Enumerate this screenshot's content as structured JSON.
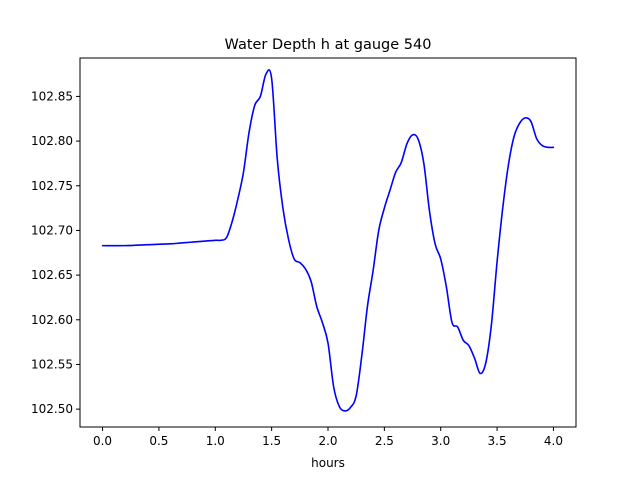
{
  "chart_data": {
    "type": "line",
    "title": "Water Depth h at gauge 540",
    "xlabel": "hours",
    "ylabel": "",
    "xlim": [
      -0.2,
      4.2
    ],
    "ylim": [
      102.48,
      102.893
    ],
    "xticks": [
      0.0,
      0.5,
      1.0,
      1.5,
      2.0,
      2.5,
      3.0,
      3.5,
      4.0
    ],
    "xtick_labels": [
      "0.0",
      "0.5",
      "1.0",
      "1.5",
      "2.0",
      "2.5",
      "3.0",
      "3.5",
      "4.0"
    ],
    "yticks": [
      102.5,
      102.55,
      102.6,
      102.65,
      102.7,
      102.75,
      102.8,
      102.85
    ],
    "ytick_labels": [
      "102.50",
      "102.55",
      "102.60",
      "102.65",
      "102.70",
      "102.75",
      "102.80",
      "102.85"
    ],
    "grid": false,
    "line_color": "#0000ff",
    "series": [
      {
        "x": [
          0.0,
          0.2,
          0.4,
          0.6,
          0.7,
          0.8,
          0.9,
          1.0,
          1.05,
          1.1,
          1.15,
          1.2,
          1.25,
          1.3,
          1.35,
          1.4,
          1.45,
          1.5,
          1.55,
          1.6,
          1.65,
          1.7,
          1.75,
          1.8,
          1.85,
          1.9,
          1.95,
          2.0,
          2.05,
          2.1,
          2.15,
          2.2,
          2.25,
          2.3,
          2.35,
          2.4,
          2.45,
          2.5,
          2.55,
          2.6,
          2.65,
          2.7,
          2.75,
          2.8,
          2.85,
          2.9,
          2.95,
          3.0,
          3.05,
          3.1,
          3.15,
          3.2,
          3.25,
          3.3,
          3.35,
          3.4,
          3.45,
          3.5,
          3.55,
          3.6,
          3.65,
          3.7,
          3.75,
          3.8,
          3.85,
          3.9,
          3.95,
          4.0
        ],
        "y": [
          102.683,
          102.683,
          102.684,
          102.685,
          102.686,
          102.687,
          102.688,
          102.689,
          102.689,
          102.692,
          102.71,
          102.735,
          102.765,
          102.81,
          102.84,
          102.85,
          102.875,
          102.87,
          102.78,
          102.725,
          102.69,
          102.668,
          102.664,
          102.657,
          102.643,
          102.615,
          102.597,
          102.574,
          102.525,
          102.503,
          102.498,
          102.502,
          102.515,
          102.56,
          102.615,
          102.655,
          102.7,
          102.725,
          102.745,
          102.765,
          102.776,
          102.797,
          102.807,
          102.802,
          102.775,
          102.722,
          102.685,
          102.668,
          102.637,
          102.597,
          102.592,
          102.577,
          102.571,
          102.557,
          102.54,
          102.552,
          102.595,
          102.665,
          102.725,
          102.773,
          102.805,
          102.82,
          102.826,
          102.822,
          102.803,
          102.795,
          102.793,
          102.793
        ]
      }
    ]
  }
}
